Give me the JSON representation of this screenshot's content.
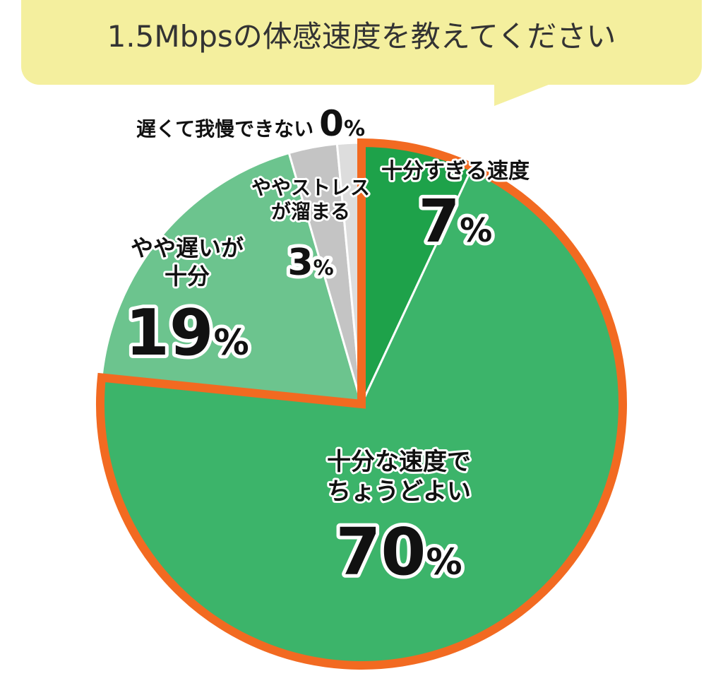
{
  "title": "1.5Mbpsの体感速度を教えてください",
  "chart_data": {
    "type": "pie",
    "title": "1.5Mbpsの体感速度を教えてください",
    "unit": "%",
    "slices": [
      {
        "label_lines": [
          "十分すぎる速度"
        ],
        "value": 7,
        "color": "#1ea24a"
      },
      {
        "label_lines": [
          "十分な速度で",
          "ちょうどよい"
        ],
        "value": 70,
        "color": "#3cb46a",
        "highlighted": true
      },
      {
        "label_lines": [
          "やや遅いが",
          "十分"
        ],
        "value": 19,
        "color": "#6cc48e"
      },
      {
        "label_lines": [
          "ややストレス",
          "が溜まる"
        ],
        "value": 3,
        "color": "#c4c4c4"
      },
      {
        "label_lines": [
          "遅くて我慢できない"
        ],
        "value": 0,
        "color": "#dddddd"
      }
    ],
    "highlight_color": "#f26a21",
    "legend": "none"
  }
}
